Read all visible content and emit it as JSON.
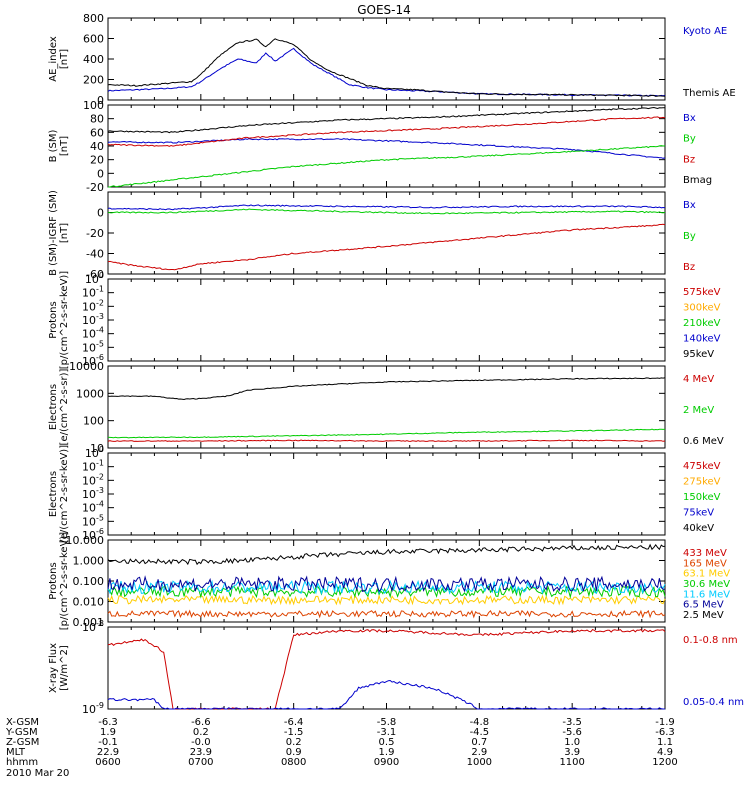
{
  "title": "GOES-14",
  "chart_data": {
    "type": "line",
    "title": "GOES-14",
    "x": [
      "0600",
      "0700",
      "0800",
      "0900",
      "1000",
      "1100",
      "1200"
    ],
    "panels": [
      {
        "id": "ae",
        "ylabel": [
          "AE_index",
          "[nT]"
        ],
        "scale": "linear",
        "ylim": [
          0,
          800
        ],
        "ticks": [
          0,
          200,
          400,
          600,
          800
        ],
        "tick_labels": [
          "0",
          "200",
          "400",
          "600",
          "800"
        ],
        "series": [
          {
            "name": "Kyoto AE",
            "color": "#0000cc",
            "t": [
              6.0,
              6.3,
              6.6,
              6.9,
              7.0,
              7.2,
              7.4,
              7.6,
              7.7,
              7.8,
              8.0,
              8.2,
              8.4,
              8.6,
              8.8,
              9.0,
              9.3,
              9.6,
              10.0,
              11.0,
              12.0
            ],
            "v": [
              90,
              100,
              110,
              130,
              180,
              300,
              400,
              360,
              460,
              380,
              500,
              350,
              250,
              150,
              120,
              100,
              90,
              80,
              60,
              50,
              40
            ]
          },
          {
            "name": "Themis AE",
            "color": "#000000",
            "t": [
              6.0,
              6.3,
              6.6,
              6.9,
              7.0,
              7.2,
              7.4,
              7.6,
              7.7,
              7.8,
              8.0,
              8.2,
              8.4,
              8.6,
              8.8,
              9.0,
              9.3,
              9.6,
              10.0,
              11.0,
              12.0
            ],
            "v": [
              150,
              140,
              160,
              180,
              250,
              430,
              560,
              590,
              520,
              600,
              540,
              380,
              280,
              210,
              140,
              110,
              100,
              80,
              60,
              50,
              40
            ]
          }
        ]
      },
      {
        "id": "b",
        "ylabel": [
          "B (SM)",
          "[nT]"
        ],
        "scale": "linear",
        "ylim": [
          -20,
          100
        ],
        "ticks": [
          -20,
          0,
          20,
          40,
          60,
          80,
          100
        ],
        "tick_labels": [
          "-20",
          "0",
          "20",
          "40",
          "60",
          "80",
          "100"
        ],
        "series": [
          {
            "name": "Bx",
            "color": "#0000cc",
            "t": [
              6.0,
              6.7,
              7.5,
              8.5,
              9.5,
              10.5,
              11.0,
              12.0
            ],
            "v": [
              46,
              45,
              50,
              50,
              45,
              38,
              35,
              22
            ]
          },
          {
            "name": "By",
            "color": "#00cc00",
            "t": [
              6.0,
              7.0,
              8.0,
              9.0,
              10.0,
              11.0,
              12.0
            ],
            "v": [
              -20,
              -5,
              10,
              20,
              25,
              32,
              40
            ]
          },
          {
            "name": "Bz",
            "color": "#cc0000",
            "t": [
              6.0,
              6.7,
              7.5,
              8.5,
              9.5,
              10.5,
              11.5,
              12.0
            ],
            "v": [
              42,
              40,
              52,
              60,
              65,
              72,
              80,
              82
            ]
          },
          {
            "name": "Bmag",
            "color": "#000000",
            "t": [
              6.0,
              6.7,
              7.5,
              8.5,
              9.5,
              10.5,
              11.5,
              12.0
            ],
            "v": [
              62,
              60,
              70,
              78,
              82,
              88,
              94,
              96
            ]
          }
        ]
      },
      {
        "id": "bdiff",
        "ylabel": [
          "B (SM)-IGRF (SM)",
          "[nT]"
        ],
        "scale": "linear",
        "ylim": [
          -60,
          20
        ],
        "ticks": [
          -60,
          -40,
          -20,
          0
        ],
        "tick_labels": [
          "-60",
          "-40",
          "-20",
          "0"
        ],
        "series": [
          {
            "name": "Bx",
            "color": "#0000cc",
            "t": [
              6.0,
              6.7,
              7.5,
              8.5,
              9.5,
              10.5,
              11.5,
              12.0
            ],
            "v": [
              4,
              3,
              7,
              6,
              5,
              6,
              6,
              5
            ]
          },
          {
            "name": "By",
            "color": "#00cc00",
            "t": [
              6.0,
              6.7,
              7.5,
              8.5,
              9.5,
              10.5,
              11.5,
              12.0
            ],
            "v": [
              0,
              0,
              3,
              1,
              -1,
              0,
              1,
              0
            ]
          },
          {
            "name": "Bz",
            "color": "#cc0000",
            "t": [
              6.0,
              6.3,
              6.7,
              7.0,
              7.5,
              8.0,
              9.0,
              10.0,
              11.0,
              12.0
            ],
            "v": [
              -48,
              -52,
              -56,
              -50,
              -46,
              -40,
              -33,
              -25,
              -17,
              -12
            ]
          }
        ]
      },
      {
        "id": "protons-1",
        "ylabel": [
          "Protons",
          "[p/(cm^2-s-sr-keV)]"
        ],
        "scale": "log",
        "ylim": [
          1e-06,
          1
        ],
        "ticks": [
          1e-06,
          1e-05,
          0.0001,
          0.001,
          0.01,
          0.1,
          1
        ],
        "tick_labels": [
          "10^-6",
          "10^-5",
          "10^-4",
          "10^-3",
          "10^-2",
          "10^-1",
          "10^0"
        ],
        "series": [
          {
            "name": "575keV",
            "color": "#cc0000",
            "t": [],
            "v": []
          },
          {
            "name": "300keV",
            "color": "#ffaa00",
            "t": [],
            "v": []
          },
          {
            "name": "210keV",
            "color": "#00cc00",
            "t": [],
            "v": []
          },
          {
            "name": "140keV",
            "color": "#0000cc",
            "t": [],
            "v": []
          },
          {
            "name": "95keV",
            "color": "#000000",
            "t": [],
            "v": []
          }
        ]
      },
      {
        "id": "electrons-1",
        "ylabel": [
          "Electrons",
          "[e/(cm^2-s-sr)]"
        ],
        "scale": "log",
        "ylim": [
          10,
          10000
        ],
        "ticks": [
          10,
          100,
          1000,
          10000
        ],
        "tick_labels": [
          "10",
          "100",
          "1000",
          "10000"
        ],
        "series": [
          {
            "name": "4 MeV",
            "color": "#cc0000",
            "t": [
              6.0,
              7.0,
              8.0,
              9.0,
              10.0,
              11.0,
              12.0
            ],
            "v": [
              18,
              18,
              19,
              18,
              18,
              19,
              18
            ]
          },
          {
            "name": "2 MeV",
            "color": "#00cc00",
            "t": [
              6.0,
              7.0,
              8.0,
              9.0,
              10.0,
              11.0,
              12.0
            ],
            "v": [
              24,
              25,
              28,
              32,
              38,
              42,
              48
            ]
          },
          {
            "name": "0.6 MeV",
            "color": "#000000",
            "t": [
              6.0,
              6.5,
              6.8,
              7.0,
              7.3,
              7.5,
              8.0,
              8.5,
              9.0,
              10.0,
              11.0,
              12.0
            ],
            "v": [
              800,
              780,
              600,
              650,
              800,
              1300,
              1800,
              2200,
              2600,
              3000,
              3400,
              3600
            ]
          }
        ]
      },
      {
        "id": "electrons-2",
        "ylabel": [
          "Electrons",
          "[e/(cm^2-s-sr-keV)]"
        ],
        "scale": "log",
        "ylim": [
          1e-06,
          1
        ],
        "ticks": [
          1e-06,
          1e-05,
          0.0001,
          0.001,
          0.01,
          0.1,
          1
        ],
        "tick_labels": [
          "10^-6",
          "10^-5",
          "10^-4",
          "10^-3",
          "10^-2",
          "10^-1",
          "10^0"
        ],
        "series": [
          {
            "name": "475keV",
            "color": "#cc0000",
            "t": [],
            "v": []
          },
          {
            "name": "275keV",
            "color": "#ffaa00",
            "t": [],
            "v": []
          },
          {
            "name": "150keV",
            "color": "#00cc00",
            "t": [],
            "v": []
          },
          {
            "name": "75keV",
            "color": "#0000cc",
            "t": [],
            "v": []
          },
          {
            "name": "40keV",
            "color": "#000000",
            "t": [],
            "v": []
          }
        ]
      },
      {
        "id": "protons-2",
        "ylabel": [
          "Protons",
          "[p/(cm^2-s-sr-keV)]"
        ],
        "scale": "log",
        "ylim": [
          0.001,
          10
        ],
        "ticks": [
          0.001,
          0.01,
          0.1,
          1,
          10
        ],
        "tick_labels": [
          "0.001",
          "0.010",
          "0.100",
          "1.000",
          "10.000"
        ],
        "series": [
          {
            "name": "433 MeV",
            "color": "#cc0000",
            "t": [],
            "v": []
          },
          {
            "name": "165 MeV",
            "color": "#dd4400",
            "t": [
              6.0,
              12.0
            ],
            "v": [
              0.0025,
              0.0025
            ],
            "noise": 0.15
          },
          {
            "name": "63.1 MeV",
            "color": "#ffcc00",
            "t": [
              6.0,
              12.0
            ],
            "v": [
              0.012,
              0.012
            ],
            "noise": 0.2
          },
          {
            "name": "30.6 MeV",
            "color": "#00cc00",
            "t": [
              6.0,
              12.0
            ],
            "v": [
              0.03,
              0.03
            ],
            "noise": 0.25
          },
          {
            "name": "11.6 MeV",
            "color": "#00ccff",
            "t": [
              6.0,
              12.0
            ],
            "v": [
              0.05,
              0.05
            ],
            "noise": 0.3
          },
          {
            "name": "6.5 MeV",
            "color": "#000099",
            "t": [
              6.0,
              12.0
            ],
            "v": [
              0.07,
              0.07
            ],
            "noise": 0.35
          },
          {
            "name": "2.5 MeV",
            "color": "#000000",
            "t": [
              6.0,
              6.5,
              7.0,
              7.5,
              8.0,
              8.5,
              9.0,
              10.0,
              11.0,
              12.0
            ],
            "v": [
              0.9,
              0.9,
              0.85,
              1.0,
              1.5,
              2.0,
              2.6,
              3.2,
              4.0,
              4.5
            ],
            "noise": 0.12
          }
        ]
      },
      {
        "id": "xray",
        "ylabel": [
          "X-ray Flux",
          "[W/m^2]"
        ],
        "scale": "log",
        "ylim": [
          1e-09,
          1e-08
        ],
        "ticks": [
          1e-09,
          1e-08
        ],
        "tick_labels": [
          "10^-9",
          "10^-8"
        ],
        "series": [
          {
            "name": "0.1-0.8 nm",
            "color": "#cc0000",
            "t": [
              6.0,
              6.4,
              6.6,
              6.7,
              6.9,
              7.2,
              7.6,
              7.8,
              8.0,
              8.5,
              9.0,
              10.0,
              11.0,
              12.0
            ],
            "v": [
              6e-09,
              7e-09,
              5e-09,
              1e-09,
              1e-09,
              1e-09,
              1e-09,
              1e-09,
              8e-09,
              9e-09,
              9e-09,
              8e-09,
              9e-09,
              9e-09
            ]
          },
          {
            "name": "0.05-0.4 nm",
            "color": "#0000cc",
            "t": [
              6.0,
              6.5,
              6.6,
              7.0,
              8.0,
              8.5,
              8.7,
              9.0,
              9.5,
              9.8,
              10.0,
              12.0
            ],
            "v": [
              1.3e-09,
              1.3e-09,
              1e-09,
              1e-09,
              1e-09,
              1e-09,
              1.8e-09,
              2.2e-09,
              1.8e-09,
              1.3e-09,
              1e-09,
              1e-09
            ]
          }
        ]
      }
    ],
    "orbit": {
      "row_labels": [
        "X-GSM",
        "Y-GSM",
        "Z-GSM",
        "MLT",
        "hhmm"
      ],
      "columns": [
        [
          "-6.3",
          "1.9",
          "-0.1",
          "22.9",
          "0600"
        ],
        [
          "-6.6",
          "0.2",
          "-0.0",
          "23.9",
          "0700"
        ],
        [
          "-6.4",
          "-1.5",
          "0.2",
          "0.9",
          "0800"
        ],
        [
          "-5.8",
          "-3.1",
          "0.5",
          "1.9",
          "0900"
        ],
        [
          "-4.8",
          "-4.5",
          "0.7",
          "2.9",
          "1000"
        ],
        [
          "-3.5",
          "-5.6",
          "1.0",
          "3.9",
          "1100"
        ],
        [
          "-1.9",
          "-6.3",
          "1.1",
          "4.9",
          "1200"
        ]
      ],
      "date": "2010 Mar 20"
    }
  }
}
